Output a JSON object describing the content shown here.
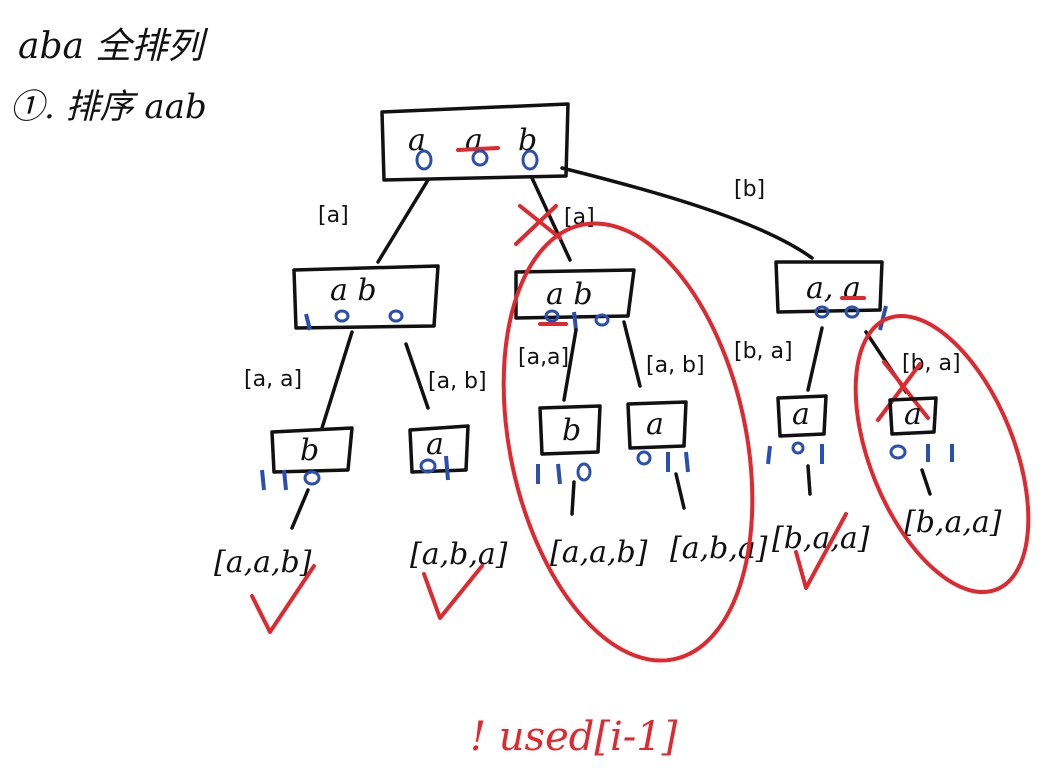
{
  "header": {
    "line1": "aba 全排列",
    "line2": "①. 排序 aab"
  },
  "root": {
    "letters": [
      "a",
      "a",
      "b"
    ]
  },
  "edge_labels": {
    "root_left": "[a]",
    "root_mid": "[a]",
    "root_right": "[b]",
    "l_left": "[a, a]",
    "l_right": "[a, b]",
    "m_left": "[a,a]",
    "m_right": "[a, b]",
    "r_left": "[b, a]",
    "r_right": "[b, a]"
  },
  "level1": {
    "left": "a  b",
    "mid": "a  b",
    "right": "a, a"
  },
  "level2": {
    "n1": "b",
    "n2": "a",
    "n3": "b",
    "n4": "a",
    "n5": "a",
    "n6": "a"
  },
  "results": {
    "r1": "[a,a,b]",
    "r2": "[a,b,a]",
    "r3": "[a,a,b]",
    "r4": "[a,b,a]",
    "r5": "[b,a,a]",
    "r6": "[b,a,a]"
  },
  "footer_note": "! used[i-1]",
  "colors": {
    "ink": "#111111",
    "accent_red": "#e0282e",
    "accent_blue": "#2a4fb0"
  }
}
